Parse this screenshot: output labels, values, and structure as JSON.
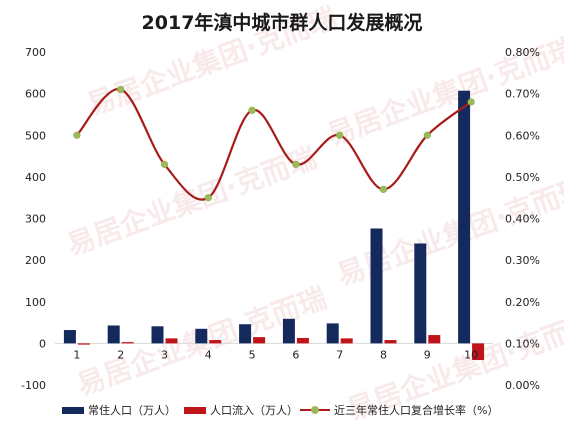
{
  "chart_data": {
    "type": "bar",
    "title": "2017年滇中城市群人口发展概况",
    "categories": [
      "1",
      "2",
      "3",
      "4",
      "5",
      "6",
      "7",
      "8",
      "9",
      "10"
    ],
    "y_left": {
      "ylim": [
        -100,
        700
      ],
      "ticks": [
        -100,
        0,
        100,
        200,
        300,
        400,
        500,
        600,
        700
      ]
    },
    "y_right": {
      "ylim": [
        0,
        0.8
      ],
      "ticks": [
        "0.00%",
        "0.10%",
        "0.20%",
        "0.30%",
        "0.40%",
        "0.50%",
        "0.60%",
        "0.70%",
        "0.80%"
      ]
    },
    "series": [
      {
        "name": "常住人口（万人）",
        "type": "bar",
        "axis": "left",
        "color": "#142a5c",
        "values": [
          32,
          43,
          41,
          35,
          46,
          59,
          48,
          276,
          240,
          607
        ]
      },
      {
        "name": "人口流入（万人）",
        "type": "bar",
        "axis": "left",
        "color": "#c0141b",
        "values": [
          -3,
          3,
          12,
          8,
          15,
          13,
          12,
          8,
          20,
          -40
        ]
      },
      {
        "name": "近三年常住人口复合增长率（%）",
        "type": "line",
        "axis": "right",
        "color": "#a81b1b",
        "marker_color": "#9bbb59",
        "values": [
          0.006,
          0.0071,
          0.0053,
          0.0045,
          0.0066,
          0.0053,
          0.006,
          0.0047,
          0.006,
          0.0068
        ]
      }
    ],
    "legend_position": "bottom",
    "grid": false
  },
  "watermark": "易居企业集团·克而瑞"
}
